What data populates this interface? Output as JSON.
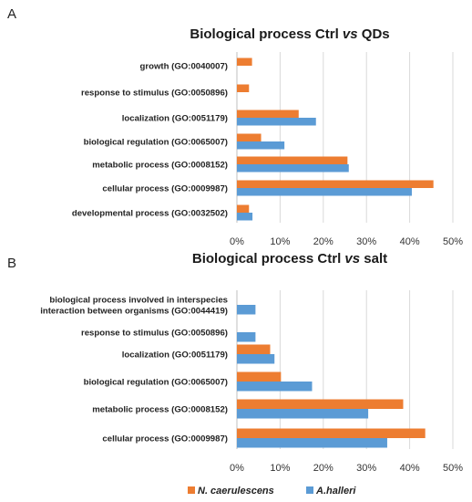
{
  "colors": {
    "n_caerulescens": "#ED7D31",
    "a_halleri": "#5B9BD5"
  },
  "legend": {
    "placement": "bottom-center",
    "entries": [
      {
        "name": "N. caerulescens",
        "color": "#ED7D31"
      },
      {
        "name": "A.halleri",
        "color": "#5B9BD5"
      }
    ]
  },
  "chart_data": [
    {
      "panel": "A",
      "type": "bar",
      "orientation": "horizontal",
      "title": "Biological process Ctrl vs QDs",
      "title_parts": {
        "pre": "Biological process Ctrl ",
        "italic": "vs",
        "post": " QDs"
      },
      "categories": [
        "growth (GO:0040007)",
        "response to stimulus (GO:0050896)",
        "localization (GO:0051179)",
        "biological regulation (GO:0065007)",
        "metabolic process (GO:0008152)",
        "cellular process (GO:0009987)",
        "developmental process (GO:0032502)"
      ],
      "series": [
        {
          "name": "N. caerulescens",
          "values": [
            3.5,
            2.8,
            14.3,
            5.6,
            25.6,
            45.5,
            2.8
          ]
        },
        {
          "name": "A.halleri",
          "values": [
            0,
            0,
            18.3,
            11.0,
            25.9,
            40.5,
            3.6
          ]
        }
      ],
      "xlim": [
        0,
        50
      ],
      "xticks": [
        "0%",
        "10%",
        "20%",
        "30%",
        "40%",
        "50%"
      ],
      "grid": true
    },
    {
      "panel": "B",
      "type": "bar",
      "orientation": "horizontal",
      "title": "Biological process Ctrl vs salt",
      "title_parts": {
        "pre": "Biological process Ctrl ",
        "italic": "vs",
        "post": " salt"
      },
      "categories": [
        "biological process involved in interspecies interaction between organisms (GO:0044419)",
        "response to stimulus (GO:0050896)",
        "localization (GO:0051179)",
        "biological regulation (GO:0065007)",
        "metabolic process (GO:0008152)",
        "cellular process (GO:0009987)"
      ],
      "category_lines": [
        [
          "biological process involved in interspecies",
          "interaction between organisms (GO:0044419)"
        ],
        [
          "response to stimulus (GO:0050896)"
        ],
        [
          "localization (GO:0051179)"
        ],
        [
          "biological regulation (GO:0065007)"
        ],
        [
          "metabolic process (GO:0008152)"
        ],
        [
          "cellular process (GO:0009987)"
        ]
      ],
      "series": [
        {
          "name": "N. caerulescens",
          "values": [
            0,
            0,
            7.7,
            10.2,
            38.5,
            43.6
          ]
        },
        {
          "name": "A.halleri",
          "values": [
            4.3,
            4.3,
            8.7,
            17.4,
            30.4,
            34.8
          ]
        }
      ],
      "xlim": [
        0,
        50
      ],
      "xticks": [
        "0%",
        "10%",
        "20%",
        "30%",
        "40%",
        "50%"
      ],
      "grid": true
    }
  ]
}
